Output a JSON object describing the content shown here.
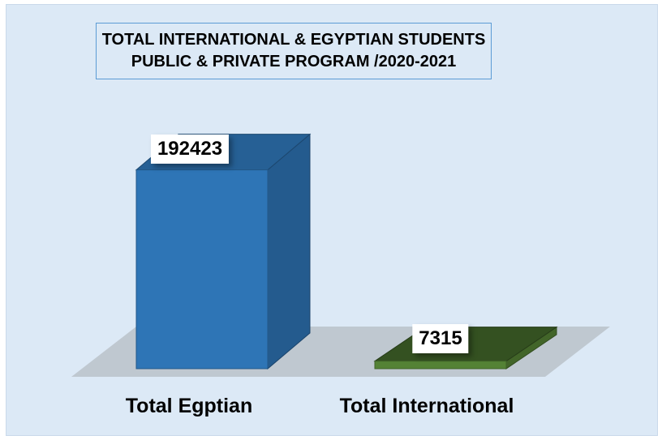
{
  "chart_data": {
    "type": "bar",
    "title_lines": [
      "TOTAL INTERNATIONAL & EGYPTIAN STUDENTS",
      "PUBLIC & PRIVATE PROGRAM /2020-2021"
    ],
    "categories": [
      "Total Egptian",
      "Total International"
    ],
    "values": [
      192423,
      7315
    ],
    "data_labels": [
      "192423",
      "7315"
    ],
    "colors": [
      "#2e75b6",
      "#548235"
    ],
    "xlabel": "",
    "ylabel": "",
    "ylim": [
      0,
      200000
    ],
    "grid": false,
    "legend": "none"
  }
}
